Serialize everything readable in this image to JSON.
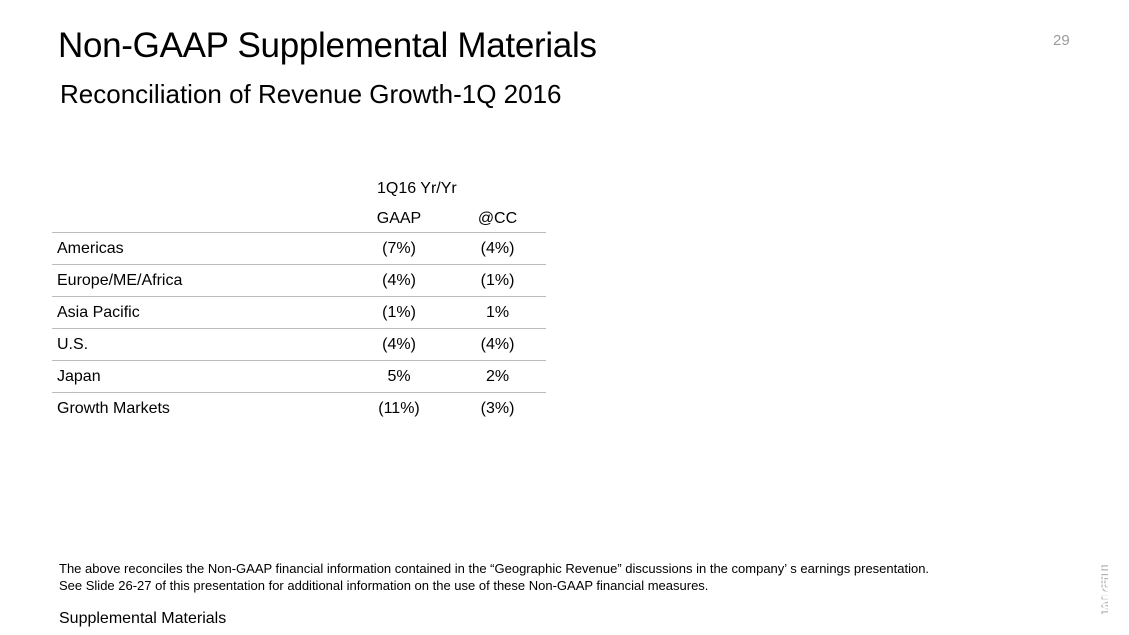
{
  "slide": {
    "title": "Non-GAAP Supplemental Materials",
    "subtitle": "Reconciliation of Revenue Growth-1Q 2016",
    "page_number": "29"
  },
  "table": {
    "group_header": "1Q16 Yr/Yr",
    "col_gaap": "GAAP",
    "col_cc": "@CC",
    "rows": [
      {
        "label": "Americas",
        "gaap": "(7%)",
        "cc": "(4%)"
      },
      {
        "label": "Europe/ME/Africa",
        "gaap": "(4%)",
        "cc": "(1%)"
      },
      {
        "label": "Asia Pacific",
        "gaap": "(1%)",
        "cc": "1%"
      },
      {
        "label": "U.S.",
        "gaap": "(4%)",
        "cc": "(4%)"
      },
      {
        "label": "Japan",
        "gaap": "5%",
        "cc": "2%"
      },
      {
        "label": "Growth Markets",
        "gaap": "(11%)",
        "cc": "(3%)"
      }
    ]
  },
  "notes": {
    "line1": "The above reconciles the Non-GAAP financial information contained in the “Geographic Revenue” discussions in the company’ s earnings presentation.",
    "line2": "See Slide 26-27 of this presentation for additional information on the use of these Non-GAAP financial measures."
  },
  "footer": {
    "label": "Supplemental Materials"
  },
  "logo": {
    "text": "IBM",
    "color": "#b4b4b4"
  }
}
